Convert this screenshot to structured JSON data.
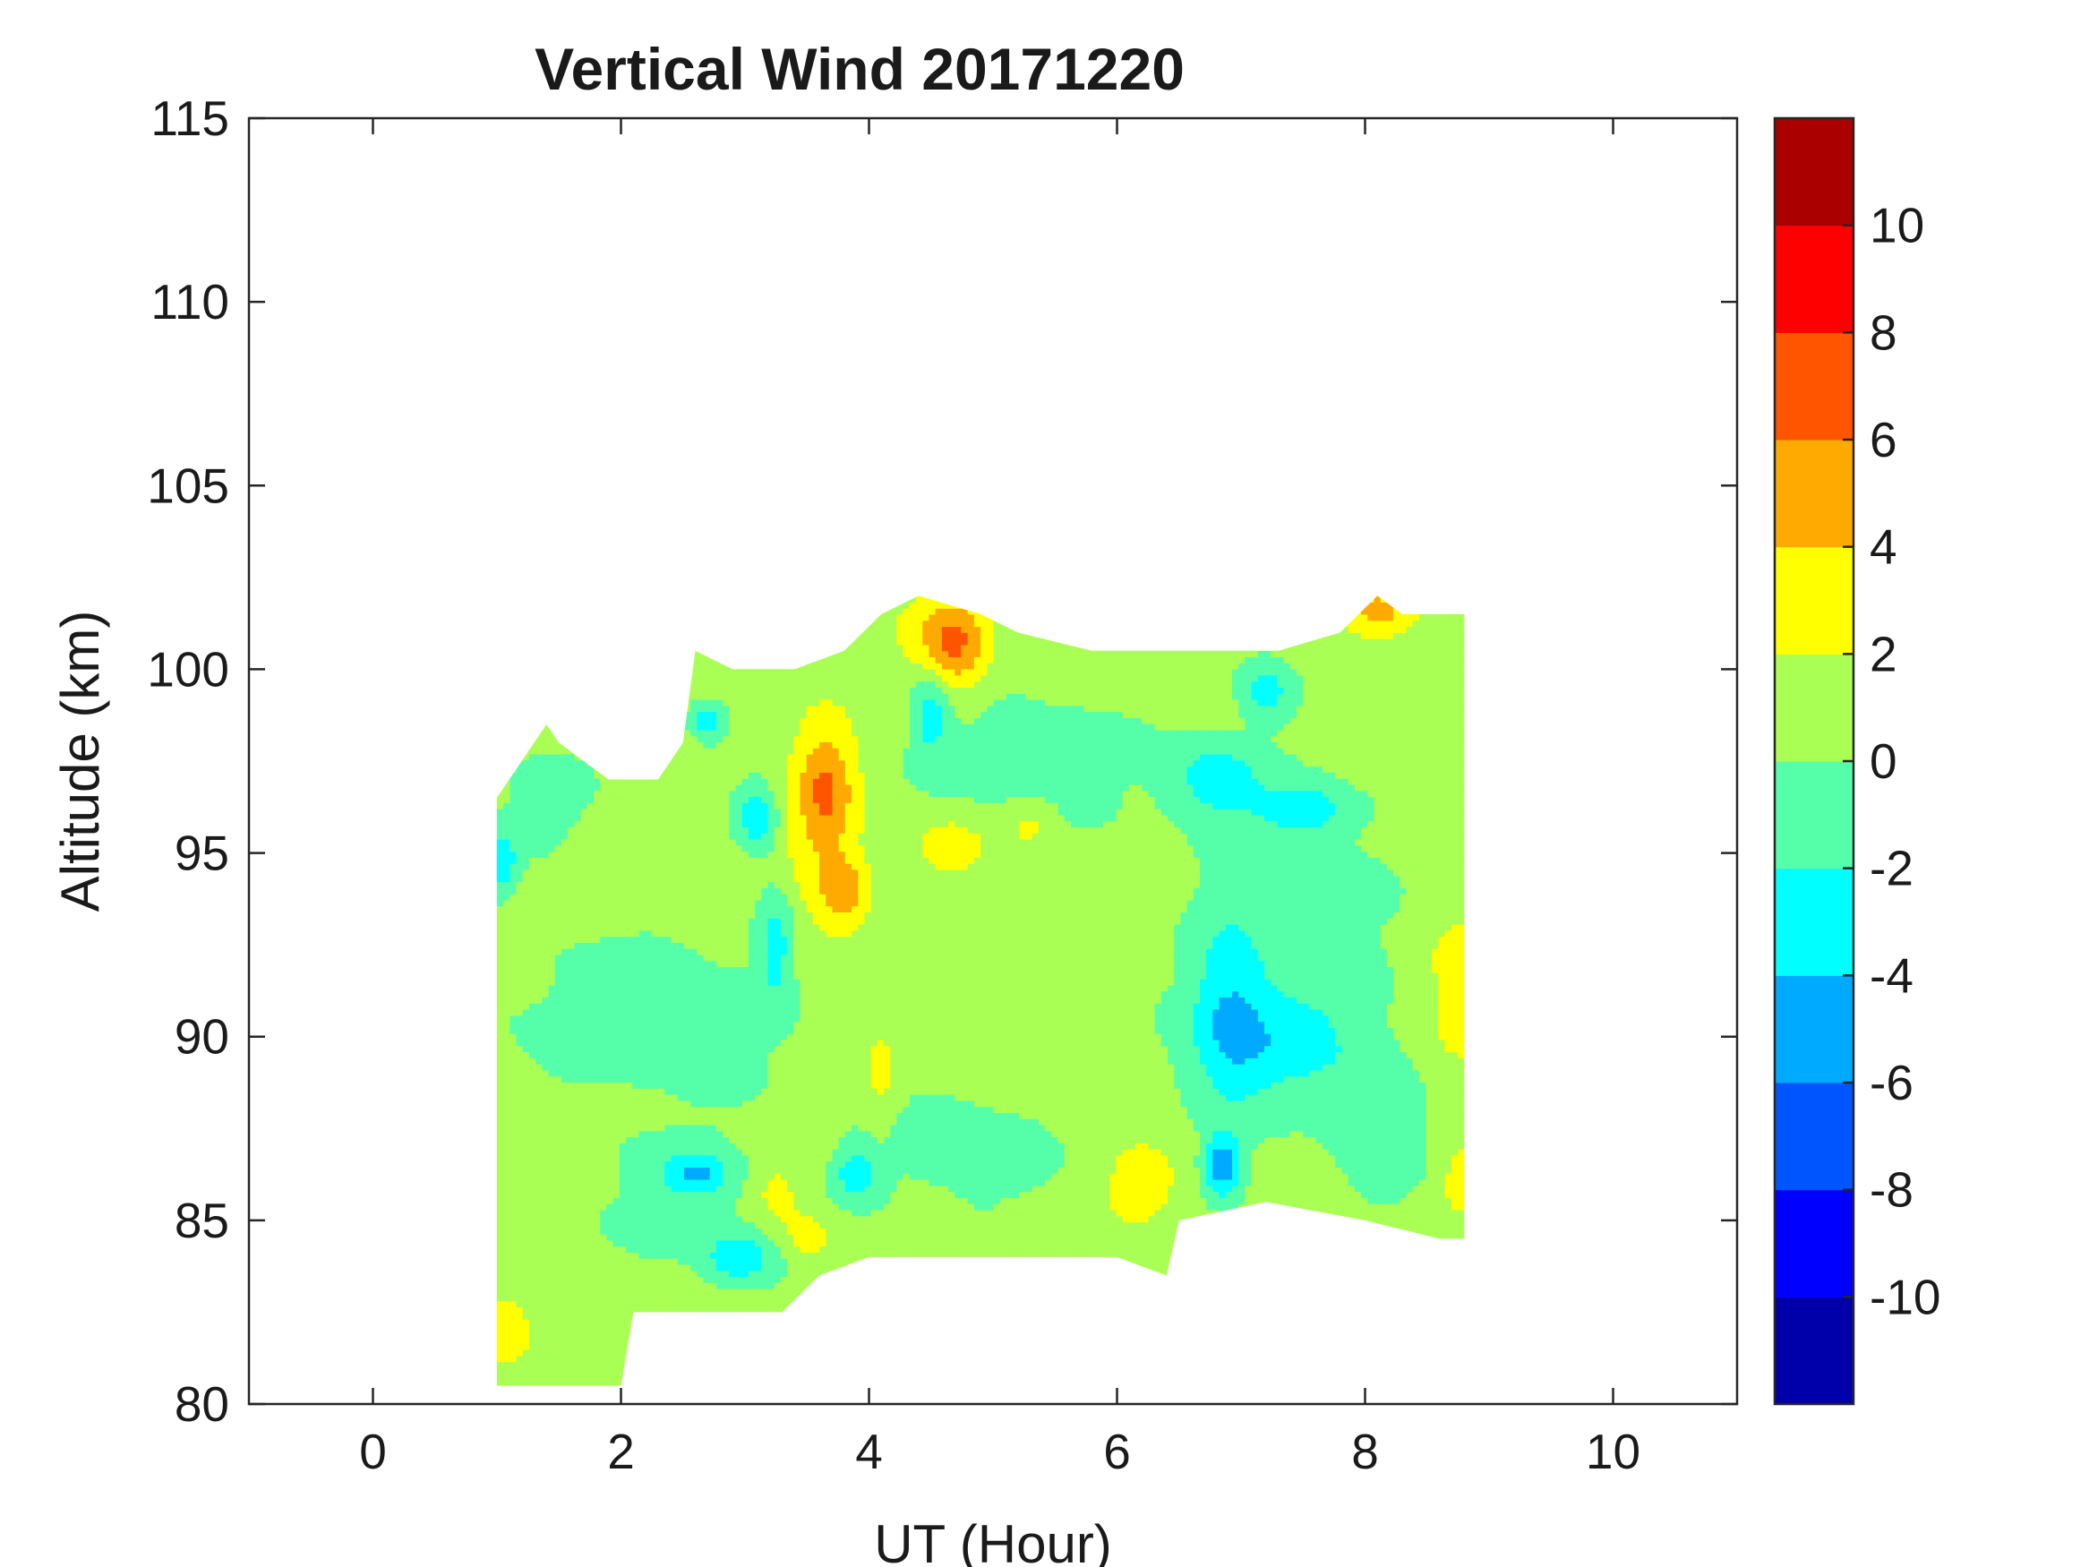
{
  "chart_data": {
    "type": "heatmap",
    "subtype": "filled-contour",
    "title": "Vertical Wind 20171220",
    "xlabel": "UT (Hour)",
    "ylabel": "Altitude (km)",
    "xlim": [
      -1,
      11
    ],
    "ylim": [
      80,
      115
    ],
    "xticks": [
      0,
      2,
      4,
      6,
      8,
      10
    ],
    "yticks": [
      80,
      85,
      90,
      95,
      100,
      105,
      110,
      115
    ],
    "xtick_labels": [
      "0",
      "2",
      "4",
      "6",
      "8",
      "10"
    ],
    "ytick_labels": [
      "80",
      "85",
      "90",
      "95",
      "100",
      "105",
      "110",
      "115"
    ],
    "grid": false,
    "colorbar": {
      "position": "right",
      "range": [
        -12,
        12
      ],
      "levels": [
        -12,
        -10,
        -8,
        -6,
        -4,
        -2,
        0,
        2,
        4,
        6,
        8,
        10,
        12
      ],
      "colors": [
        "#0000aa",
        "#0000ff",
        "#0055ff",
        "#00aaff",
        "#00ffff",
        "#55ffaa",
        "#aaff55",
        "#ffff00",
        "#ffaa00",
        "#ff5500",
        "#ff0000",
        "#aa0000"
      ],
      "tick_values": [
        -10,
        -8,
        -6,
        -4,
        -2,
        0,
        2,
        4,
        6,
        8,
        10
      ],
      "tick_labels": [
        "-10",
        "-8",
        "-6",
        "-4",
        "-2",
        "0",
        "2",
        "4",
        "6",
        "8",
        "10"
      ]
    },
    "data_extent": {
      "x_range": [
        1.0,
        8.8
      ],
      "boundary": [
        [
          1.0,
          80.5
        ],
        [
          2.0,
          80.5
        ],
        [
          2.1,
          82.5
        ],
        [
          3.3,
          82.5
        ],
        [
          3.6,
          83.5
        ],
        [
          4.0,
          84.0
        ],
        [
          6.0,
          84.0
        ],
        [
          6.4,
          83.5
        ],
        [
          6.5,
          85.0
        ],
        [
          7.2,
          85.5
        ],
        [
          8.0,
          85.0
        ],
        [
          8.6,
          84.5
        ],
        [
          8.8,
          84.5
        ],
        [
          8.8,
          101.5
        ],
        [
          8.3,
          101.5
        ],
        [
          8.1,
          102.0
        ],
        [
          7.8,
          101.0
        ],
        [
          7.3,
          100.5
        ],
        [
          5.8,
          100.5
        ],
        [
          5.2,
          101.0
        ],
        [
          4.9,
          101.5
        ],
        [
          4.4,
          102.0
        ],
        [
          4.1,
          101.5
        ],
        [
          3.8,
          100.5
        ],
        [
          3.4,
          100.0
        ],
        [
          2.9,
          100.0
        ],
        [
          2.6,
          100.5
        ],
        [
          2.5,
          98.0
        ],
        [
          2.3,
          97.0
        ],
        [
          1.9,
          97.0
        ],
        [
          1.5,
          98.0
        ],
        [
          1.4,
          98.5
        ],
        [
          1.0,
          96.5
        ]
      ],
      "background_value": 0.8
    },
    "features": [
      {
        "x": 3.65,
        "y": 96.8,
        "sx": 0.16,
        "sy": 1.2,
        "value": 5.0
      },
      {
        "x": 3.8,
        "y": 94.0,
        "sx": 0.13,
        "sy": 0.7,
        "value": 4.2
      },
      {
        "x": 3.6,
        "y": 95.0,
        "sx": 0.28,
        "sy": 2.8,
        "value": 2.5
      },
      {
        "x": 4.7,
        "y": 100.5,
        "sx": 0.18,
        "sy": 0.9,
        "value": 5.0
      },
      {
        "x": 4.6,
        "y": 101.2,
        "sx": 0.3,
        "sy": 0.7,
        "value": 3.0
      },
      {
        "x": 8.1,
        "y": 101.6,
        "sx": 0.22,
        "sy": 0.5,
        "value": 5.0
      },
      {
        "x": 4.65,
        "y": 95.2,
        "sx": 0.22,
        "sy": 0.6,
        "value": 3.3
      },
      {
        "x": 5.3,
        "y": 95.8,
        "sx": 0.15,
        "sy": 0.5,
        "value": 3.0
      },
      {
        "x": 6.2,
        "y": 86.0,
        "sx": 0.25,
        "sy": 0.8,
        "value": 3.1
      },
      {
        "x": 8.75,
        "y": 91.0,
        "sx": 0.2,
        "sy": 1.8,
        "value": 3.0
      },
      {
        "x": 8.75,
        "y": 86.2,
        "sx": 0.15,
        "sy": 0.8,
        "value": 3.0
      },
      {
        "x": 3.25,
        "y": 85.8,
        "sx": 0.15,
        "sy": 0.6,
        "value": 3.2
      },
      {
        "x": 3.5,
        "y": 84.6,
        "sx": 0.15,
        "sy": 0.5,
        "value": 3.1
      },
      {
        "x": 1.1,
        "y": 82.0,
        "sx": 0.12,
        "sy": 0.7,
        "value": 3.2
      },
      {
        "x": 4.1,
        "y": 89.0,
        "sx": 0.1,
        "sy": 1.0,
        "value": 3.0
      },
      {
        "x": 6.9,
        "y": 91.0,
        "sx": 0.22,
        "sy": 2.0,
        "value": -2.7
      },
      {
        "x": 7.3,
        "y": 89.8,
        "sx": 0.55,
        "sy": 1.2,
        "value": -2.3
      },
      {
        "x": 6.85,
        "y": 86.5,
        "sx": 0.11,
        "sy": 0.6,
        "value": -5.2
      },
      {
        "x": 6.8,
        "y": 97.0,
        "sx": 0.28,
        "sy": 0.8,
        "value": -2.9
      },
      {
        "x": 7.5,
        "y": 96.2,
        "sx": 0.25,
        "sy": 0.45,
        "value": -2.8
      },
      {
        "x": 7.2,
        "y": 99.5,
        "sx": 0.15,
        "sy": 0.6,
        "value": -2.8
      },
      {
        "x": 4.5,
        "y": 98.8,
        "sx": 0.1,
        "sy": 0.7,
        "value": -3.2
      },
      {
        "x": 3.1,
        "y": 96.0,
        "sx": 0.12,
        "sy": 0.7,
        "value": -3.4
      },
      {
        "x": 3.25,
        "y": 92.6,
        "sx": 0.11,
        "sy": 1.2,
        "value": -2.9
      },
      {
        "x": 2.7,
        "y": 98.6,
        "sx": 0.1,
        "sy": 0.4,
        "value": -3.0
      },
      {
        "x": 2.6,
        "y": 86.3,
        "sx": 0.18,
        "sy": 0.4,
        "value": -3.1
      },
      {
        "x": 2.95,
        "y": 84.0,
        "sx": 0.2,
        "sy": 0.5,
        "value": -3.0
      },
      {
        "x": 3.9,
        "y": 86.3,
        "sx": 0.12,
        "sy": 0.5,
        "value": -2.9
      },
      {
        "x": 1.05,
        "y": 94.8,
        "sx": 0.08,
        "sy": 0.6,
        "value": -3.0
      },
      {
        "x": 5.7,
        "y": 88.8,
        "sx": 0.45,
        "sy": 5.0,
        "value": 0.9
      },
      {
        "x": 2.2,
        "y": 90.6,
        "sx": 0.9,
        "sy": 1.8,
        "value": -0.9
      },
      {
        "x": 4.8,
        "y": 87.0,
        "sx": 0.6,
        "sy": 1.4,
        "value": -0.8
      },
      {
        "x": 5.3,
        "y": 97.5,
        "sx": 0.7,
        "sy": 1.5,
        "value": -0.8
      },
      {
        "x": 7.6,
        "y": 93.5,
        "sx": 0.5,
        "sy": 2.5,
        "value": -0.7
      },
      {
        "x": 2.5,
        "y": 85.6,
        "sx": 0.6,
        "sy": 1.3,
        "value": -0.6
      },
      {
        "x": 8.2,
        "y": 87.0,
        "sx": 0.4,
        "sy": 1.5,
        "value": -0.6
      },
      {
        "x": 1.4,
        "y": 96.5,
        "sx": 0.3,
        "sy": 1.0,
        "value": -0.7
      },
      {
        "x": 6.4,
        "y": 98.0,
        "sx": 0.4,
        "sy": 1.5,
        "value": 0.8
      },
      {
        "x": 1.8,
        "y": 88.0,
        "sx": 0.3,
        "sy": 2.0,
        "value": 0.8
      },
      {
        "x": 3.0,
        "y": 89.0,
        "sx": 0.3,
        "sy": 2.0,
        "value": 0.8
      }
    ]
  }
}
